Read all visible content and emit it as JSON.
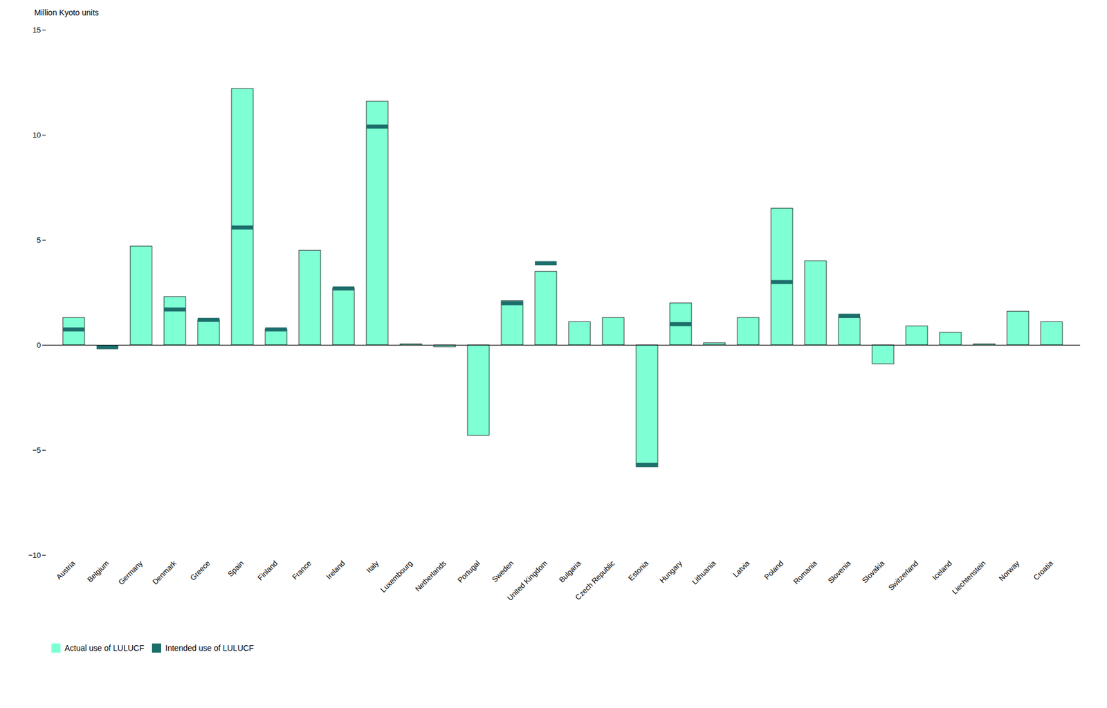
{
  "chart_data": {
    "type": "bar",
    "ylabel": "Million Kyoto units",
    "categories": [
      "Austria",
      "Belgium",
      "Germany",
      "Denmark",
      "Greece",
      "Spain",
      "Finland",
      "France",
      "Ireland",
      "Italy",
      "Luxembourg",
      "Netherlands",
      "Portugal",
      "Sweden",
      "United Kingdom",
      "Bulgaria",
      "Czech Republic",
      "Estonia",
      "Hungary",
      "Lithuania",
      "Latvia",
      "Poland",
      "Romania",
      "Slovenia",
      "Slovakia",
      "Switzerland",
      "Iceland",
      "Liechtenstein",
      "Norway",
      "Croatia"
    ],
    "series": [
      {
        "name": "Actual use of LULUCF",
        "type": "bar",
        "color": "#7FFFD4",
        "values": [
          1.3,
          0.0,
          4.7,
          2.3,
          1.2,
          12.2,
          0.75,
          4.5,
          2.7,
          11.6,
          0.05,
          -0.1,
          -4.3,
          2.1,
          3.5,
          1.1,
          1.3,
          -5.8,
          2.0,
          0.1,
          1.3,
          6.5,
          4.0,
          1.3,
          -0.9,
          0.9,
          0.6,
          0.05,
          1.6,
          1.1
        ]
      },
      {
        "name": "Intended use of LULUCF",
        "type": "marker",
        "color": "#1c6e6a",
        "values": [
          0.75,
          -0.1,
          null,
          1.7,
          1.2,
          5.6,
          0.75,
          null,
          2.7,
          10.4,
          null,
          null,
          null,
          2.0,
          3.9,
          null,
          null,
          -5.7,
          1.0,
          null,
          null,
          3.0,
          null,
          1.4,
          null,
          null,
          null,
          null,
          null,
          null
        ]
      }
    ],
    "ylim": [
      -10,
      15
    ],
    "yticks": [
      {
        "value": -10,
        "label": "−10"
      },
      {
        "value": -5,
        "label": "−5"
      },
      0,
      5,
      10,
      15
    ],
    "grid": false,
    "legend": "bottom"
  }
}
